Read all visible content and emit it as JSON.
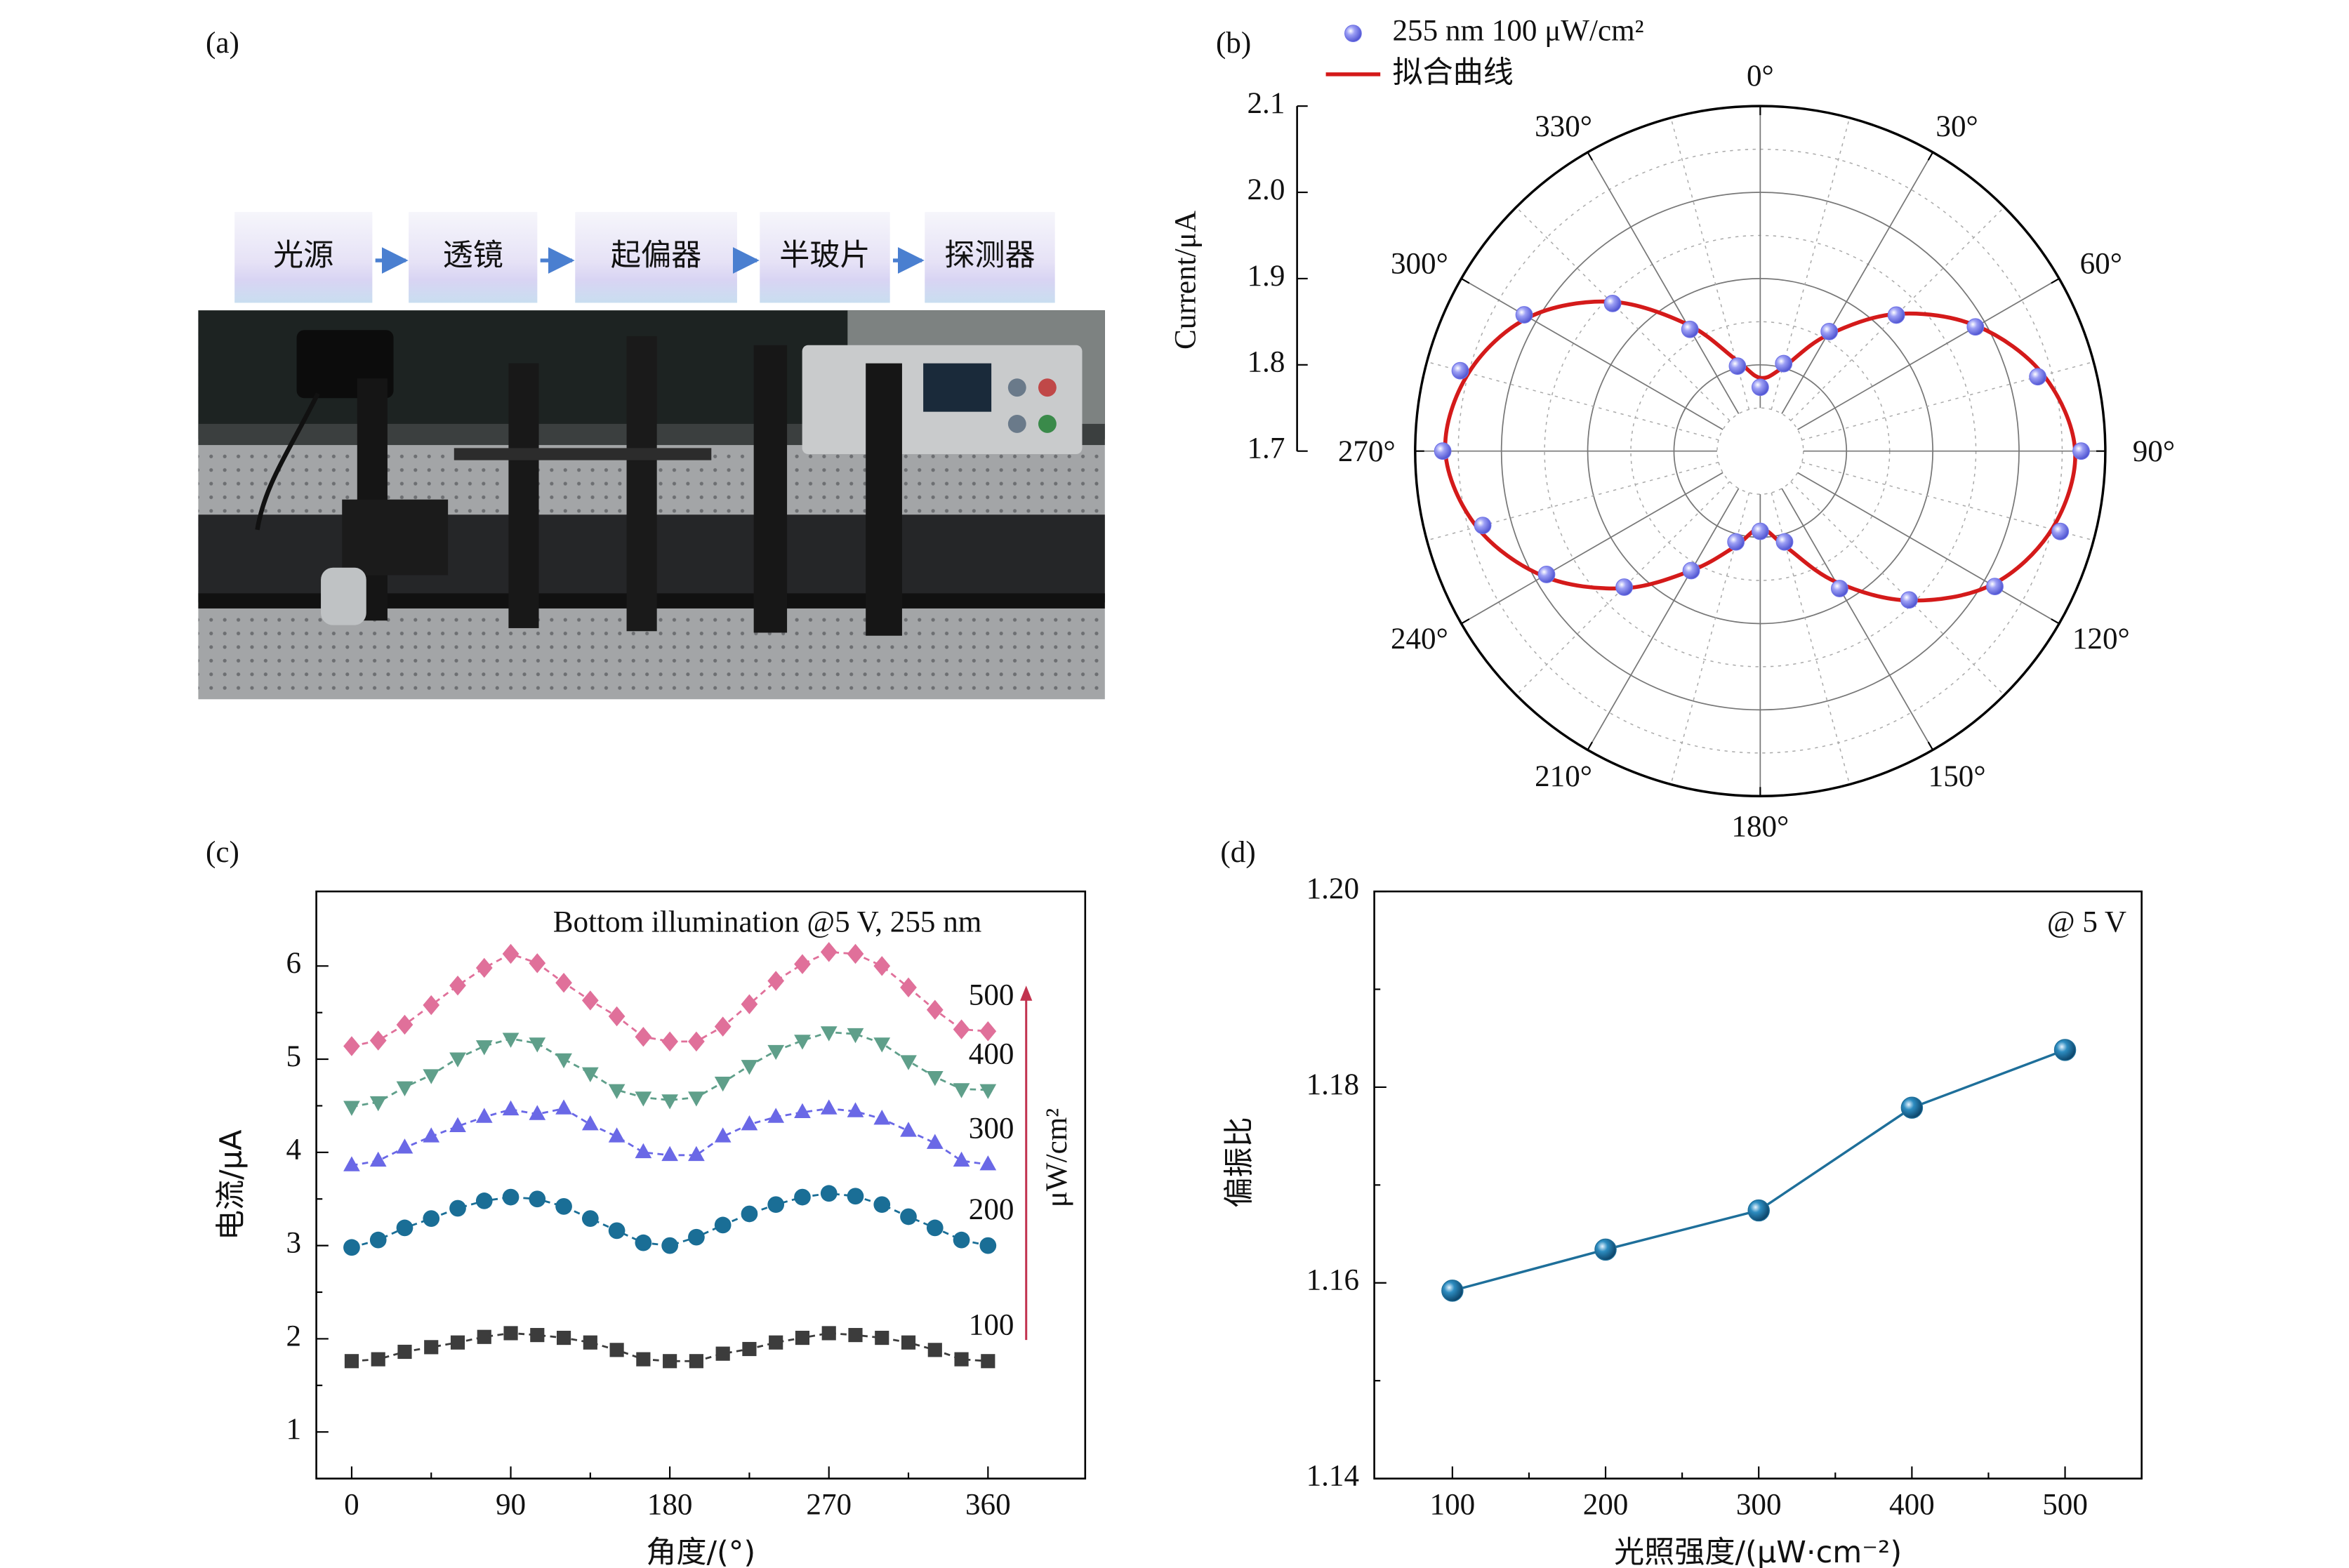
{
  "photo_panel": {
    "panel_label": "(a)",
    "steps": [
      "光源",
      "透镜",
      "起偏器",
      "半玻片",
      "探测器"
    ]
  },
  "chart_data": [
    {
      "type": "polar",
      "panel_label": "(b)",
      "y_label": "Current/μA",
      "ylim": [
        1.7,
        2.1
      ],
      "yticks": [
        1.7,
        1.8,
        1.9,
        {
          "value": 2,
          "label": "2.0"
        },
        2.1
      ],
      "thetaticks": [
        {
          "value": 0,
          "label": "0°"
        },
        {
          "value": 30,
          "label": "30°"
        },
        {
          "value": 60,
          "label": "60°"
        },
        {
          "value": 90,
          "label": "90°"
        },
        {
          "value": 120,
          "label": "120°"
        },
        {
          "value": 150,
          "label": "150°"
        },
        {
          "value": 180,
          "label": "180°"
        },
        {
          "value": 210,
          "label": "210°"
        },
        {
          "value": 240,
          "label": "240°"
        },
        {
          "value": 270,
          "label": "270°"
        },
        {
          "value": 300,
          "label": "300°"
        },
        {
          "value": 330,
          "label": "330°"
        }
      ],
      "theta": [
        0,
        15,
        30,
        45,
        60,
        75,
        90,
        105,
        120,
        135,
        150,
        165,
        180,
        195,
        210,
        225,
        240,
        255,
        270,
        285,
        300,
        315,
        330,
        345
      ],
      "grid": true,
      "legend": "top-left",
      "series": [
        {
          "name": "255 nm 100 μW/cm²",
          "color": "#6f73e6",
          "kind": "scatter",
          "values": [
            1.774,
            1.805,
            1.86,
            1.923,
            1.988,
            2.033,
            2.072,
            2.06,
            2.014,
            1.944,
            1.884,
            1.809,
            1.793,
            1.809,
            1.86,
            1.923,
            1.986,
            2.033,
            2.068,
            2.06,
            2.016,
            1.942,
            1.863,
            1.802
          ]
        },
        {
          "name": "拟合曲线",
          "color": "#d41a1a",
          "kind": "line",
          "values": [
            1.785,
            1.8,
            1.855,
            1.925,
            1.99,
            2.04,
            2.065,
            2.05,
            2.01,
            1.945,
            1.875,
            1.815,
            1.79,
            1.815,
            1.86,
            1.925,
            1.99,
            2.04,
            2.065,
            2.05,
            2.01,
            1.945,
            1.87,
            1.81
          ]
        }
      ]
    },
    {
      "type": "line",
      "panel_label": "(c)",
      "annotation": "Bottom illumination @5 V, 255 nm",
      "unit_label": "μW/cm²",
      "x_label": "角度/(°)",
      "y_label": "电流/μA",
      "x": [
        0,
        15,
        30,
        45,
        60,
        75,
        90,
        105,
        120,
        135,
        150,
        165,
        180,
        195,
        210,
        225,
        240,
        255,
        270,
        285,
        300,
        315,
        330,
        345,
        360
      ],
      "xlim": [
        -20,
        415
      ],
      "xticks": [
        0,
        90,
        180,
        270,
        360
      ],
      "ylim": [
        0.5,
        6.8
      ],
      "yticks": [
        1,
        2,
        3,
        4,
        5,
        6
      ],
      "arrow_color": "#c2334f",
      "series": [
        {
          "name": "500",
          "color": "#e0709a",
          "marker": "diamond",
          "values": [
            5.14,
            5.2,
            5.37,
            5.58,
            5.79,
            5.98,
            6.13,
            6.03,
            5.82,
            5.63,
            5.46,
            5.24,
            5.19,
            5.19,
            5.35,
            5.59,
            5.84,
            6.02,
            6.15,
            6.13,
            6.0,
            5.77,
            5.53,
            5.32,
            5.3
          ]
        },
        {
          "name": "400",
          "color": "#5f9f8a",
          "marker": "triangle-down",
          "values": [
            4.49,
            4.54,
            4.7,
            4.83,
            5.01,
            5.14,
            5.22,
            5.17,
            5.0,
            4.85,
            4.67,
            4.59,
            4.56,
            4.59,
            4.75,
            4.93,
            5.09,
            5.2,
            5.29,
            5.27,
            5.17,
            4.98,
            4.81,
            4.68,
            4.67
          ]
        },
        {
          "name": "300",
          "color": "#6a68e6",
          "marker": "triangle-up",
          "values": [
            3.86,
            3.91,
            4.05,
            4.17,
            4.28,
            4.38,
            4.46,
            4.41,
            4.47,
            4.3,
            4.17,
            4.0,
            3.97,
            3.97,
            4.17,
            4.3,
            4.38,
            4.43,
            4.47,
            4.44,
            4.36,
            4.23,
            4.1,
            3.91,
            3.87
          ]
        },
        {
          "name": "200",
          "color": "#1a6e96",
          "marker": "circle",
          "values": [
            2.98,
            3.06,
            3.19,
            3.29,
            3.4,
            3.48,
            3.52,
            3.5,
            3.42,
            3.29,
            3.16,
            3.03,
            3.0,
            3.09,
            3.22,
            3.34,
            3.44,
            3.52,
            3.56,
            3.53,
            3.44,
            3.31,
            3.19,
            3.06,
            3.0
          ]
        },
        {
          "name": "100",
          "color": "#3c3c3c",
          "marker": "square",
          "values": [
            1.76,
            1.78,
            1.86,
            1.91,
            1.96,
            2.02,
            2.06,
            2.04,
            2.01,
            1.96,
            1.88,
            1.78,
            1.76,
            1.76,
            1.84,
            1.89,
            1.96,
            2.01,
            2.06,
            2.04,
            2.01,
            1.96,
            1.88,
            1.78,
            1.76
          ]
        }
      ]
    },
    {
      "type": "line",
      "panel_label": "(d)",
      "annotation": "@ 5 V",
      "x_label": "光照强度/(μW·cm⁻²)",
      "y_label": "偏振比",
      "x": [
        100,
        200,
        300,
        400,
        500
      ],
      "xlim": [
        49,
        550
      ],
      "xticks": [
        100,
        200,
        300,
        400,
        500
      ],
      "ylim": [
        1.14,
        1.2
      ],
      "yticks": [
        1.14,
        1.16,
        1.18,
        {
          "value": 1.2,
          "label": "1.20"
        }
      ],
      "series": [
        {
          "color": "#1e6f9a",
          "marker": "sphere",
          "values": [
            1.1592,
            1.1634,
            1.1674,
            1.1779,
            1.1838
          ]
        }
      ]
    }
  ]
}
